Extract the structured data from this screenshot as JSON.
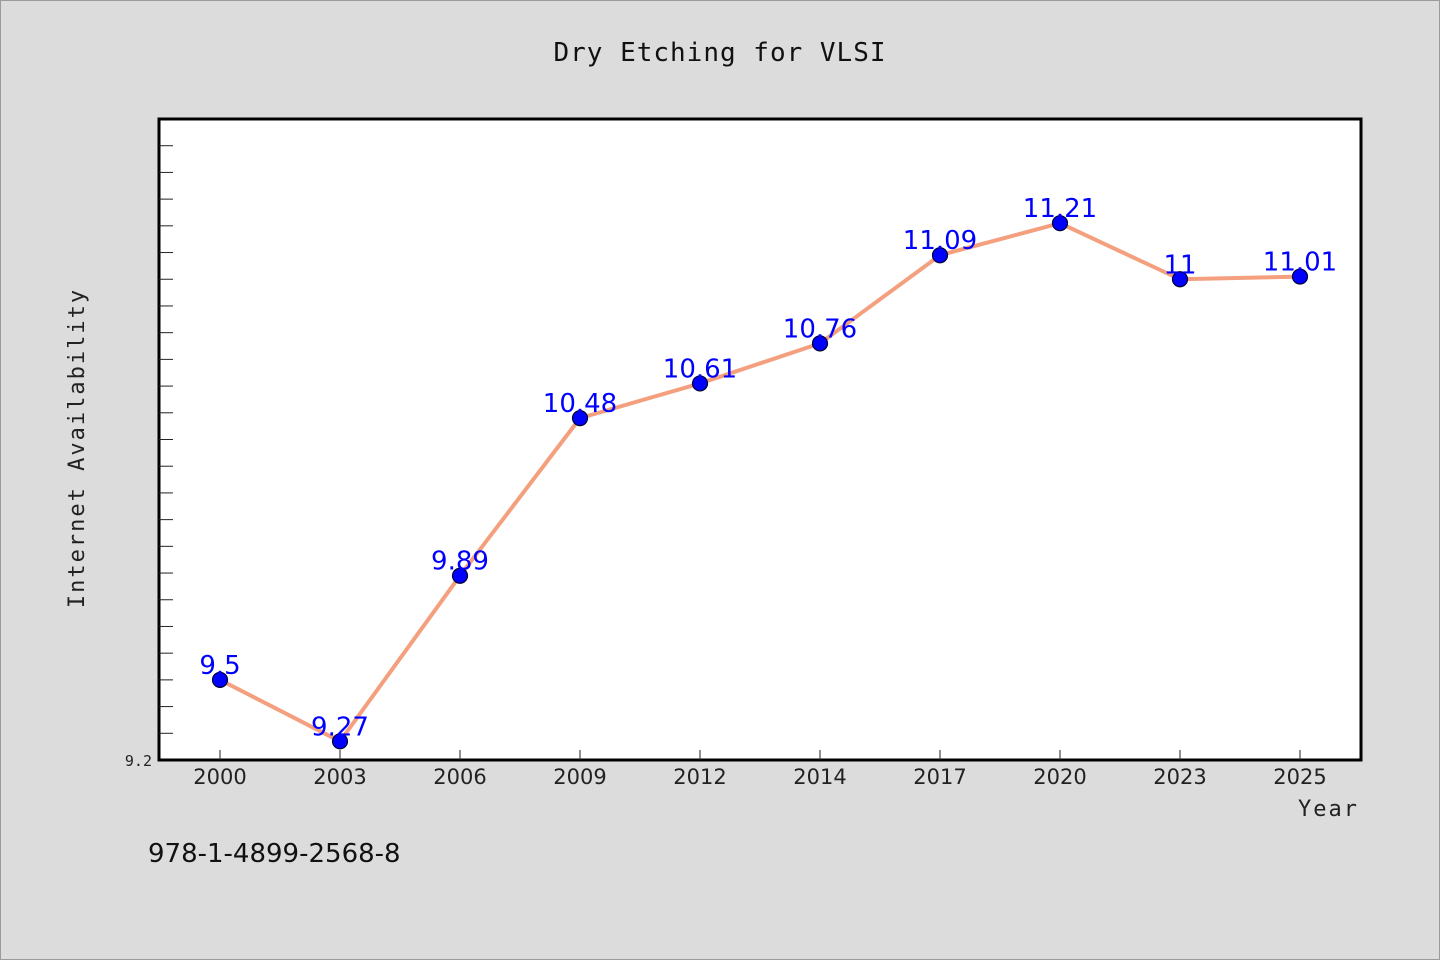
{
  "chart_data": {
    "type": "line",
    "title": "Dry Etching for VLSI",
    "xlabel": "Year",
    "ylabel": "Internet Availability",
    "categories": [
      "2000",
      "2003",
      "2006",
      "2009",
      "2012",
      "2014",
      "2017",
      "2020",
      "2023",
      "2025"
    ],
    "series": [
      {
        "values": [
          9.5,
          9.27,
          9.89,
          10.48,
          10.61,
          10.76,
          11.09,
          11.21,
          11.0,
          11.01
        ],
        "labels": [
          "9.5",
          "9.27",
          "9.89",
          "10.48",
          "10.61",
          "10.76",
          "11.09",
          "11.21",
          "11",
          "11.01"
        ]
      }
    ],
    "ylim": [
      9.2,
      11.6
    ],
    "y_tick_label": "9.2",
    "grid": false,
    "line_color": "#f4a07e",
    "marker_color": "#0000ff",
    "label_color": "#0000ff"
  },
  "footnote": "978-1-4899-2568-8"
}
